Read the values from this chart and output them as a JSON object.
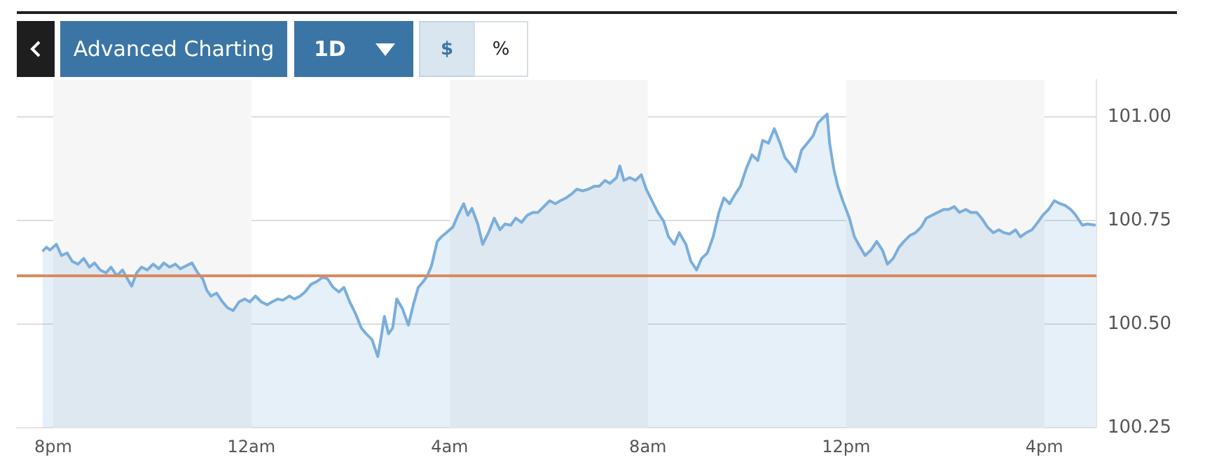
{
  "chart_data": {
    "type": "area",
    "annotations": [
      "Advanced Charting",
      "1D",
      "$",
      "%"
    ],
    "x": [
      "--01-01T19:47",
      "--01-01T19:52",
      "--01-01T19:56",
      "--01-01T20:04",
      "--01-01T20:10",
      "--01-01T20:17",
      "--01-01T20:23",
      "--01-01T20:30",
      "--01-01T20:37",
      "--01-01T20:44",
      "--01-01T20:50",
      "--01-01T20:57",
      "--01-01T21:04",
      "--01-01T21:10",
      "--01-01T21:17",
      "--01-01T21:24",
      "--01-01T21:31",
      "--01-01T21:35",
      "--01-01T21:41",
      "--01-01T21:47",
      "--01-01T21:54",
      "--01-01T22:01",
      "--01-01T22:08",
      "--01-01T22:14",
      "--01-01T22:21",
      "--01-01T22:28",
      "--01-01T22:34",
      "--01-01T22:41",
      "--01-01T22:48",
      "--01-01T22:55",
      "--01-01T23:01",
      "--01-01T23:06",
      "--01-01T23:11",
      "--01-01T23:18",
      "--01-01T23:25",
      "--01-01T23:31",
      "--01-01T23:38",
      "--01-01T23:45",
      "--01-01T23:52",
      "--01-01T23:58",
      "--01-02T00:05",
      "--01-02T00:12",
      "--01-02T00:19",
      "--01-02T00:25",
      "--01-02T00:32",
      "--01-02T00:38",
      "--01-02T00:46",
      "--01-02T00:52",
      "--01-02T00:59",
      "--01-02T01:05",
      "--01-02T01:12",
      "--01-02T01:19",
      "--01-02T01:26",
      "--01-02T01:32",
      "--01-02T01:39",
      "--01-02T01:46",
      "--01-02T01:52",
      "--01-02T01:59",
      "--01-02T02:06",
      "--01-02T02:13",
      "--01-02T02:19",
      "--01-02T02:26",
      "--01-02T02:33",
      "--01-02T02:36",
      "--01-02T02:41",
      "--01-02T02:46",
      "--01-02T02:51",
      "--01-02T02:56",
      "--01-02T03:03",
      "--01-02T03:10",
      "--01-02T03:16",
      "--01-02T03:22",
      "--01-02T03:28",
      "--01-02T03:33",
      "--01-02T03:38",
      "--01-02T03:45",
      "--01-02T03:50",
      "--01-02T03:56",
      "--01-02T04:04",
      "--01-02T04:10",
      "--01-02T04:17",
      "--01-02T04:22",
      "--01-02T04:27",
      "--01-02T04:34",
      "--01-02T04:40",
      "--01-02T04:47",
      "--01-02T04:54",
      "--01-02T05:01",
      "--01-02T05:07",
      "--01-02T05:14",
      "--01-02T05:20",
      "--01-02T05:27",
      "--01-02T05:34",
      "--01-02T05:41",
      "--01-02T05:47",
      "--01-02T05:54",
      "--01-02T06:01",
      "--01-02T06:08",
      "--01-02T06:14",
      "--01-02T06:21",
      "--01-02T06:28",
      "--01-02T06:34",
      "--01-02T06:41",
      "--01-02T06:48",
      "--01-02T06:55",
      "--01-02T07:01",
      "--01-02T07:08",
      "--01-02T07:14",
      "--01-02T07:22",
      "--01-02T07:26",
      "--01-02T07:31",
      "--01-02T07:38",
      "--01-02T07:45",
      "--01-02T07:52",
      "--01-02T07:58",
      "--01-02T08:05",
      "--01-02T08:12",
      "--01-02T08:19",
      "--01-02T08:25",
      "--01-02T08:32",
      "--01-02T08:38",
      "--01-02T08:46",
      "--01-02T08:52",
      "--01-02T08:59",
      "--01-02T09:05",
      "--01-02T09:12",
      "--01-02T09:19",
      "--01-02T09:26",
      "--01-02T09:32",
      "--01-02T09:39",
      "--01-02T09:46",
      "--01-02T09:52",
      "--01-02T09:59",
      "--01-02T10:06",
      "--01-02T10:13",
      "--01-02T10:19",
      "--01-02T10:26",
      "--01-02T10:33",
      "--01-02T10:40",
      "--01-02T10:46",
      "--01-02T10:53",
      "--01-02T10:59",
      "--01-02T11:06",
      "--01-02T11:13",
      "--01-02T11:20",
      "--01-02T11:26",
      "--01-02T11:33",
      "--01-02T11:37",
      "--01-02T11:40",
      "--01-02T11:45",
      "--01-02T11:50",
      "--01-02T11:56",
      "--01-02T12:04",
      "--01-02T12:10",
      "--01-02T12:17",
      "--01-02T12:23",
      "--01-02T12:30",
      "--01-02T12:37",
      "--01-02T12:44",
      "--01-02T12:50",
      "--01-02T12:57",
      "--01-02T13:04",
      "--01-02T13:10",
      "--01-02T13:17",
      "--01-02T13:24",
      "--01-02T13:31",
      "--01-02T13:37",
      "--01-02T13:44",
      "--01-02T13:51",
      "--01-02T13:58",
      "--01-02T14:04",
      "--01-02T14:11",
      "--01-02T14:17",
      "--01-02T14:25",
      "--01-02T14:31",
      "--01-02T14:38",
      "--01-02T14:44",
      "--01-02T14:51",
      "--01-02T14:58",
      "--01-02T15:05",
      "--01-02T15:11",
      "--01-02T15:18",
      "--01-02T15:25",
      "--01-02T15:31",
      "--01-02T15:38",
      "--01-02T15:45",
      "--01-02T15:52",
      "--01-02T15:58",
      "--01-02T16:05",
      "--01-02T16:12",
      "--01-02T16:19",
      "--01-02T16:25",
      "--01-02T16:32",
      "--01-02T16:38",
      "--01-02T16:46",
      "--01-02T16:52",
      "--01-02T17:02"
    ],
    "series": [
      {
        "color": "#7aaedc",
        "values": [
          100.676,
          100.686,
          100.679,
          100.693,
          100.666,
          100.672,
          100.652,
          100.645,
          100.659,
          100.638,
          100.648,
          100.631,
          100.624,
          100.638,
          100.617,
          100.631,
          100.606,
          100.592,
          100.624,
          100.638,
          100.631,
          100.645,
          100.634,
          100.648,
          100.638,
          100.645,
          100.634,
          100.641,
          100.648,
          100.624,
          100.61,
          100.582,
          100.568,
          100.575,
          100.554,
          100.54,
          100.533,
          100.554,
          100.561,
          100.554,
          100.568,
          100.554,
          100.547,
          100.554,
          100.561,
          100.558,
          100.568,
          100.561,
          100.568,
          100.578,
          100.596,
          100.603,
          100.613,
          100.61,
          100.589,
          100.578,
          100.589,
          100.554,
          100.526,
          100.491,
          100.477,
          100.463,
          100.422,
          100.456,
          100.519,
          100.477,
          100.491,
          100.561,
          100.537,
          100.498,
          100.547,
          100.589,
          100.603,
          100.617,
          100.641,
          100.7,
          100.711,
          100.721,
          100.735,
          100.763,
          100.791,
          100.763,
          100.78,
          100.742,
          100.693,
          100.721,
          100.756,
          100.728,
          100.742,
          100.739,
          100.756,
          100.746,
          100.763,
          100.77,
          100.77,
          100.784,
          100.798,
          100.791,
          100.798,
          100.805,
          100.815,
          100.826,
          100.822,
          100.826,
          100.833,
          100.833,
          100.847,
          100.84,
          100.854,
          100.882,
          100.847,
          100.854,
          100.847,
          100.861,
          100.826,
          100.798,
          100.77,
          100.749,
          100.711,
          100.693,
          100.721,
          100.693,
          100.652,
          100.631,
          100.659,
          100.672,
          100.711,
          100.77,
          100.805,
          100.791,
          100.815,
          100.833,
          100.875,
          100.909,
          100.895,
          100.944,
          100.937,
          100.972,
          100.937,
          100.902,
          100.885,
          100.868,
          100.92,
          100.937,
          100.955,
          100.986,
          101.0,
          101.007,
          100.937,
          100.875,
          100.833,
          100.798,
          100.756,
          100.711,
          100.686,
          100.666,
          100.679,
          100.7,
          100.679,
          100.645,
          100.659,
          100.686,
          100.7,
          100.714,
          100.721,
          100.735,
          100.756,
          100.763,
          100.77,
          100.777,
          100.777,
          100.784,
          100.77,
          100.777,
          100.77,
          100.77,
          100.756,
          100.735,
          100.721,
          100.728,
          100.721,
          100.718,
          100.728,
          100.711,
          100.721,
          100.728,
          100.746,
          100.763,
          100.777,
          100.798,
          100.791,
          100.787,
          100.777,
          100.763,
          100.739,
          100.742,
          100.739
        ]
      }
    ],
    "xlim": [
      "--01-01T19:16",
      "--01-02T17:03"
    ],
    "xticks": [
      {
        "value": "--01-01T20:00",
        "label": "8pm"
      },
      {
        "value": "--01-02T00:00",
        "label": "12am"
      },
      {
        "value": "--01-02T04:00",
        "label": "4am"
      },
      {
        "value": "--01-02T08:00",
        "label": "8am"
      },
      {
        "value": "--01-02T12:00",
        "label": "12pm"
      },
      {
        "value": "--01-02T16:00",
        "label": "4pm"
      }
    ],
    "ylim": [
      100.25,
      101.09
    ],
    "yticks": [
      {
        "value": 100.25,
        "label": "100.25"
      },
      {
        "value": 100.5,
        "label": "100.50"
      },
      {
        "value": 100.75,
        "label": "100.75"
      },
      {
        "value": 101,
        "label": "101.00"
      }
    ],
    "grid": "y",
    "marker": "none",
    "ref_lines": [
      {
        "axis": "y",
        "value": 100.617,
        "color": "#d98a5e"
      }
    ],
    "bands": [
      {
        "axis": "x",
        "from": "--01-01T20:00",
        "to": "--01-02T00:00",
        "color": "#f6f6f6"
      },
      {
        "axis": "x",
        "from": "--01-02T04:00",
        "to": "--01-02T08:00",
        "color": "#f6f6f6"
      },
      {
        "axis": "x",
        "from": "--01-02T12:00",
        "to": "--01-02T16:00",
        "color": "#f6f6f6"
      }
    ],
    "legend": false
  }
}
